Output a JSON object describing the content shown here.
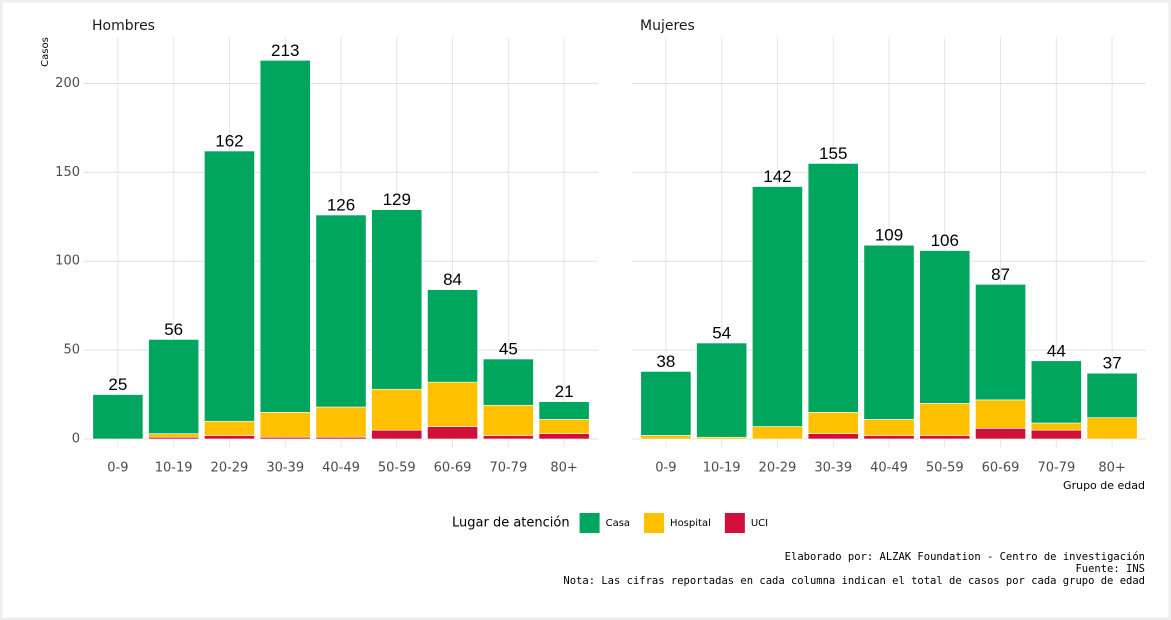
{
  "chart_data": [
    {
      "type": "bar",
      "title": "Hombres",
      "y_label": "Casos",
      "categories": [
        "0-9",
        "10-19",
        "20-29",
        "30-39",
        "40-49",
        "50-59",
        "60-69",
        "70-79",
        "80+"
      ],
      "series": [
        {
          "name": "Casa",
          "color": "#00a65d",
          "values": [
            25,
            53,
            152,
            198,
            108,
            101,
            52,
            26,
            10
          ]
        },
        {
          "name": "Hospital",
          "color": "#ffc000",
          "values": [
            0,
            2,
            8,
            14,
            17,
            23,
            25,
            17,
            8
          ]
        },
        {
          "name": "UCI",
          "color": "#d0103a",
          "values": [
            0,
            1,
            2,
            1,
            1,
            5,
            7,
            2,
            3
          ]
        }
      ],
      "totals": [
        25,
        56,
        162,
        213,
        126,
        129,
        84,
        45,
        21
      ],
      "ylim": [
        0,
        225
      ],
      "yticks": [
        0,
        50,
        100,
        150,
        200
      ],
      "grid": true
    },
    {
      "type": "bar",
      "title": "Mujeres",
      "x_label": "Grupo de edad",
      "categories": [
        "0-9",
        "10-19",
        "20-29",
        "30-39",
        "40-49",
        "50-59",
        "60-69",
        "70-79",
        "80+"
      ],
      "series": [
        {
          "name": "Casa",
          "color": "#00a65d",
          "values": [
            36,
            53,
            135,
            140,
            98,
            86,
            65,
            35,
            25
          ]
        },
        {
          "name": "Hospital",
          "color": "#ffc000",
          "values": [
            2,
            1,
            7,
            12,
            9,
            18,
            16,
            4,
            12
          ]
        },
        {
          "name": "UCI",
          "color": "#d0103a",
          "values": [
            0,
            0,
            0,
            3,
            2,
            2,
            6,
            5,
            0
          ]
        }
      ],
      "totals": [
        38,
        54,
        142,
        155,
        109,
        106,
        87,
        44,
        37
      ],
      "ylim": [
        0,
        225
      ],
      "yticks": [
        0,
        50,
        100,
        150,
        200
      ],
      "grid": true
    }
  ],
  "legend_title": "Lugar de atención",
  "caption": [
    "Elaborado por: ALZAK Foundation - Centro de investigación",
    "Fuente: INS",
    "Nota: Las cifras reportadas en cada columna indican el total de casos por cada grupo de edad"
  ]
}
